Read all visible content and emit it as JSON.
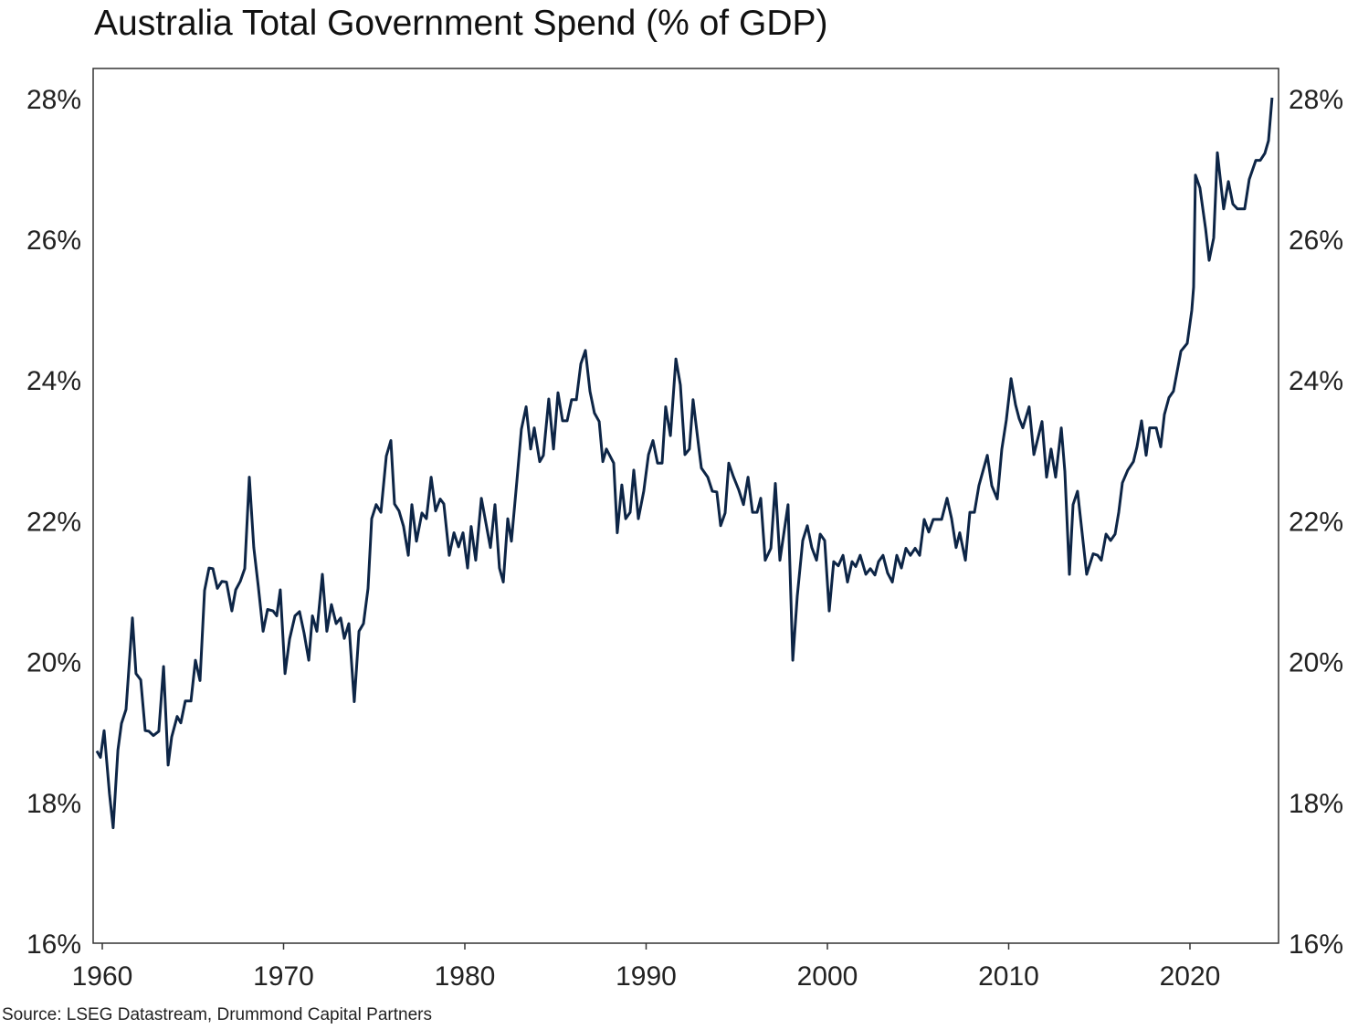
{
  "chart_data": {
    "type": "line",
    "title": "Australia Total Government Spend (% of GDP)",
    "source": "Source: LSEG Datastream, Drummond Capital Partners",
    "xlabel": "",
    "ylabel": "",
    "xlim": [
      1959.5,
      2025.0
    ],
    "ylim": [
      16,
      28.5
    ],
    "x_ticks": [
      1960,
      1970,
      1980,
      1990,
      2000,
      2010,
      2020
    ],
    "x_tick_labels": [
      "1960",
      "1970",
      "1980",
      "1990",
      "2000",
      "2010",
      "2020"
    ],
    "y_ticks": [
      16,
      18,
      20,
      22,
      24,
      26,
      28
    ],
    "y_tick_labels": [
      "16%",
      "18%",
      "20%",
      "22%",
      "24%",
      "26%",
      "28%"
    ],
    "y_axis_sides": [
      "left",
      "right"
    ],
    "grid": false,
    "legend": "none",
    "line_color": "#0d2546",
    "series": [
      {
        "x": [
          1959.7,
          1959.9,
          1960.1,
          1960.4,
          1960.6,
          1960.86,
          1961.06,
          1961.31,
          1961.66,
          1961.86,
          1962.12,
          1962.37,
          1962.57,
          1962.82,
          1963.12,
          1963.38,
          1963.63,
          1963.83,
          1964.13,
          1964.33,
          1964.58,
          1964.89,
          1965.14,
          1965.39,
          1965.64,
          1965.89,
          1966.1,
          1966.35,
          1966.6,
          1966.85,
          1967.15,
          1967.36,
          1967.61,
          1967.86,
          1968.11,
          1968.36,
          1968.61,
          1968.87,
          1969.12,
          1969.42,
          1969.62,
          1969.82,
          1970.08,
          1970.33,
          1970.63,
          1970.88,
          1971.13,
          1971.39,
          1971.59,
          1971.84,
          1972.14,
          1972.39,
          1972.64,
          1972.9,
          1973.15,
          1973.35,
          1973.6,
          1973.9,
          1974.16,
          1974.41,
          1974.66,
          1974.86,
          1975.11,
          1975.37,
          1975.67,
          1975.92,
          1976.12,
          1976.37,
          1976.62,
          1976.88,
          1977.08,
          1977.33,
          1977.63,
          1977.88,
          1978.14,
          1978.39,
          1978.64,
          1978.84,
          1979.14,
          1979.4,
          1979.65,
          1979.9,
          1980.15,
          1980.35,
          1980.6,
          1980.91,
          1981.41,
          1981.66,
          1981.91,
          1982.12,
          1982.37,
          1982.57,
          1982.87,
          1983.12,
          1983.38,
          1983.63,
          1983.83,
          1984.13,
          1984.33,
          1984.63,
          1984.89,
          1985.14,
          1985.39,
          1985.64,
          1985.89,
          1986.15,
          1986.4,
          1986.65,
          1986.9,
          1987.15,
          1987.41,
          1987.61,
          1987.81,
          1988.21,
          1988.41,
          1988.66,
          1988.87,
          1989.12,
          1989.32,
          1989.57,
          1989.87,
          1990.13,
          1990.38,
          1990.63,
          1990.88,
          1991.08,
          1991.34,
          1991.64,
          1991.89,
          1992.14,
          1992.39,
          1992.59,
          1992.9,
          1993.05,
          1993.4,
          1993.65,
          1993.9,
          1994.11,
          1994.36,
          1994.56,
          1994.81,
          1995.11,
          1995.37,
          1995.62,
          1995.87,
          1996.12,
          1996.32,
          1996.57,
          1996.88,
          1997.13,
          1997.38,
          1997.83,
          1998.09,
          1998.34,
          1998.64,
          1998.89,
          1999.14,
          1999.4,
          1999.6,
          1999.85,
          2000.1,
          2000.35,
          2000.6,
          2000.86,
          2001.11,
          2001.36,
          2001.56,
          2001.81,
          2002.12,
          2002.37,
          2002.62,
          2002.82,
          2003.07,
          2003.32,
          2003.58,
          2003.83,
          2004.08,
          2004.33,
          2004.58,
          2004.84,
          2005.09,
          2005.34,
          2005.59,
          2005.84,
          2006.3,
          2006.6,
          2006.85,
          2007.1,
          2007.3,
          2007.61,
          2007.86,
          2008.11,
          2008.36,
          2008.82,
          2009.07,
          2009.37,
          2009.62,
          2009.87,
          2010.13,
          2010.38,
          2010.58,
          2010.78,
          2011.13,
          2011.39,
          2011.84,
          2012.09,
          2012.34,
          2012.59,
          2012.9,
          2013.1,
          2013.35,
          2013.55,
          2013.8,
          2014.3,
          2014.66,
          2014.91,
          2015.11,
          2015.37,
          2015.62,
          2015.87,
          2016.07,
          2016.27,
          2016.57,
          2016.88,
          2017.08,
          2017.33,
          2017.58,
          2017.78,
          2018.14,
          2018.39,
          2018.59,
          2018.84,
          2019.09,
          2019.5,
          2019.85,
          2020.1,
          2020.2,
          2020.3,
          2020.55,
          2020.86,
          2021.06,
          2021.31,
          2021.51,
          2021.86,
          2022.12,
          2022.37,
          2022.62,
          2023.02,
          2023.27,
          2023.63,
          2023.88,
          2024.13,
          2024.33,
          2024.53
        ],
        "y": [
          18.73,
          18.64,
          19.02,
          18.12,
          17.64,
          18.74,
          19.12,
          19.32,
          20.62,
          19.83,
          19.74,
          19.02,
          19.01,
          18.95,
          19.01,
          19.93,
          18.53,
          18.93,
          19.22,
          19.13,
          19.44,
          19.44,
          20.02,
          19.73,
          21.01,
          21.33,
          21.32,
          21.04,
          21.14,
          21.13,
          20.72,
          21.02,
          21.14,
          21.32,
          22.62,
          21.62,
          21.06,
          20.43,
          20.74,
          20.72,
          20.65,
          21.02,
          19.83,
          20.32,
          20.65,
          20.71,
          20.41,
          20.02,
          20.65,
          20.43,
          21.24,
          20.43,
          20.81,
          20.54,
          20.62,
          20.33,
          20.54,
          19.43,
          20.43,
          20.54,
          21.04,
          22.03,
          22.23,
          22.12,
          22.92,
          23.14,
          22.24,
          22.14,
          21.92,
          21.51,
          22.23,
          21.71,
          22.11,
          22.03,
          22.62,
          22.14,
          22.31,
          22.24,
          21.51,
          21.83,
          21.63,
          21.83,
          21.33,
          21.92,
          21.44,
          22.32,
          21.62,
          22.23,
          21.33,
          21.13,
          22.03,
          21.71,
          22.57,
          23.3,
          23.62,
          23.02,
          23.32,
          22.84,
          22.93,
          23.73,
          23.02,
          23.82,
          23.42,
          23.42,
          23.72,
          23.72,
          24.23,
          24.42,
          23.84,
          23.53,
          23.41,
          22.84,
          23.02,
          22.82,
          21.83,
          22.51,
          22.03,
          22.12,
          22.72,
          22.03,
          22.42,
          22.94,
          23.14,
          22.82,
          22.82,
          23.62,
          23.21,
          24.3,
          23.93,
          22.94,
          23.02,
          23.72,
          23.05,
          22.75,
          22.62,
          22.42,
          22.41,
          21.93,
          22.11,
          22.82,
          22.63,
          22.44,
          22.23,
          22.62,
          22.12,
          22.12,
          22.32,
          21.44,
          21.61,
          22.53,
          21.44,
          22.23,
          20.02,
          20.93,
          21.72,
          21.93,
          21.62,
          21.44,
          21.81,
          21.72,
          20.72,
          21.42,
          21.36,
          21.51,
          21.13,
          21.42,
          21.35,
          21.51,
          21.24,
          21.32,
          21.23,
          21.42,
          21.51,
          21.26,
          21.13,
          21.51,
          21.33,
          21.61,
          21.51,
          21.61,
          21.51,
          22.02,
          21.84,
          22.02,
          22.02,
          22.32,
          22.03,
          21.62,
          21.83,
          21.44,
          22.12,
          22.12,
          22.5,
          22.93,
          22.5,
          22.31,
          23.02,
          23.43,
          24.02,
          23.65,
          23.45,
          23.32,
          23.62,
          22.94,
          23.41,
          22.62,
          23.02,
          22.62,
          23.32,
          22.7,
          21.24,
          22.23,
          22.42,
          21.24,
          21.53,
          21.51,
          21.44,
          21.81,
          21.72,
          21.81,
          22.12,
          22.54,
          22.72,
          22.84,
          23.05,
          23.42,
          22.93,
          23.32,
          23.32,
          23.05,
          23.51,
          23.75,
          23.84,
          24.41,
          24.52,
          24.99,
          25.32,
          26.91,
          26.73,
          26.15,
          25.7,
          26.02,
          27.23,
          26.43,
          26.82,
          26.5,
          26.43,
          26.43,
          26.85,
          27.12,
          27.12,
          27.22,
          27.4,
          28.01
        ]
      }
    ]
  }
}
